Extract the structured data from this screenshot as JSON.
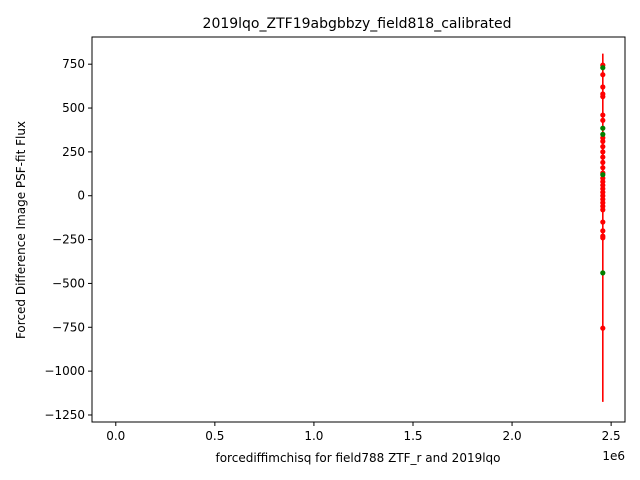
{
  "chart_data": {
    "type": "scatter",
    "title": "2019lqo_ZTF19abgbbzy_field818_calibrated",
    "xlabel": "forcediffimchisq for field788 ZTF_r and 2019lqo",
    "ylabel": "Forced Difference Image PSF-fit Flux",
    "x_offset_label": "1e6",
    "xlim": [
      -0.12,
      2.57
    ],
    "ylim": [
      -1290,
      905
    ],
    "xticks": [
      0.0,
      0.5,
      1.0,
      1.5,
      2.0,
      2.5
    ],
    "xtick_labels": [
      "0.0",
      "0.5",
      "1.0",
      "1.5",
      "2.0",
      "2.5"
    ],
    "yticks": [
      -1250,
      -1000,
      -750,
      -500,
      -250,
      0,
      250,
      500,
      750
    ],
    "ytick_labels": [
      "−1250",
      "−1000",
      "−750",
      "−500",
      "−250",
      "0",
      "250",
      "500",
      "750"
    ],
    "x_multiplier": 1000000,
    "grid": false,
    "legend": "none",
    "error_bar": {
      "x": 2.458,
      "ymin": -1175,
      "ymax": 810
    },
    "series": [
      {
        "color": "#ff0000",
        "x": [
          2.458,
          2.458,
          2.458,
          2.458,
          2.458,
          2.458,
          2.458,
          2.458,
          2.458,
          2.458,
          2.458,
          2.458,
          2.458,
          2.458,
          2.458,
          2.458,
          2.458,
          2.458,
          2.458,
          2.458,
          2.458,
          2.458,
          2.458,
          2.458,
          2.458,
          2.458,
          2.458,
          2.458,
          2.458,
          2.458
        ],
        "y": [
          745,
          690,
          620,
          580,
          565,
          460,
          430,
          330,
          310,
          280,
          250,
          220,
          190,
          160,
          130,
          100,
          80,
          60,
          40,
          20,
          0,
          -20,
          -40,
          -60,
          -80,
          -150,
          -200,
          -230,
          -240,
          -755
        ]
      },
      {
        "color": "#008000",
        "x": [
          2.458,
          2.458,
          2.458,
          2.458,
          2.458
        ],
        "y": [
          730,
          385,
          350,
          120,
          -440
        ]
      }
    ]
  }
}
